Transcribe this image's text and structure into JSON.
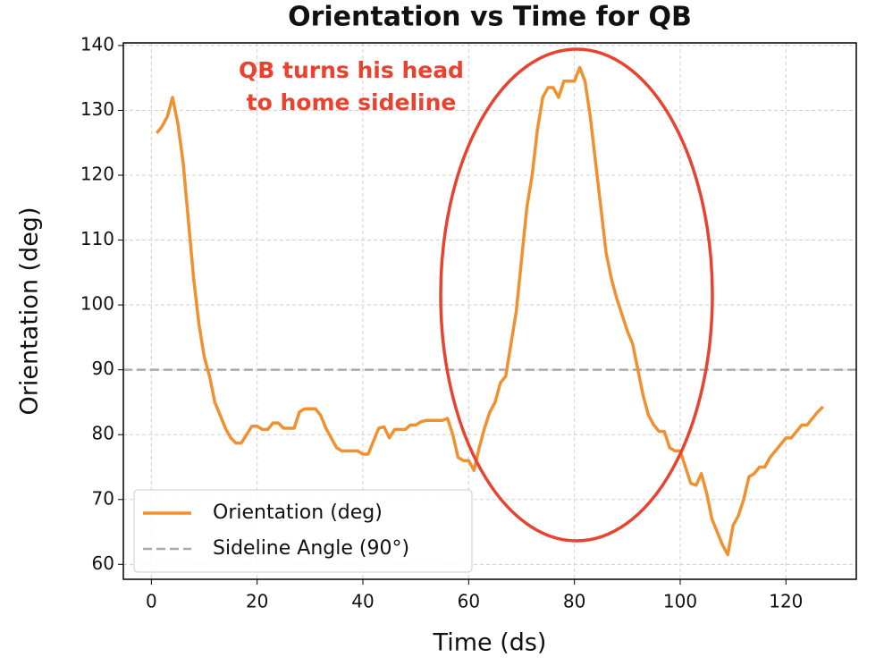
{
  "chart_data": {
    "type": "line",
    "title": "Orientation vs Time for QB",
    "x_label": "Time (ds)",
    "y_label": "Orientation (deg)",
    "x": [
      1,
      2,
      3,
      4,
      5,
      6,
      7,
      8,
      9,
      10,
      11,
      12,
      13,
      14,
      15,
      16,
      17,
      18,
      19,
      20,
      21,
      22,
      23,
      24,
      25,
      26,
      27,
      28,
      29,
      30,
      31,
      32,
      33,
      34,
      35,
      36,
      37,
      38,
      39,
      40,
      41,
      42,
      43,
      44,
      45,
      46,
      47,
      48,
      49,
      50,
      51,
      52,
      53,
      54,
      55,
      56,
      57,
      58,
      59,
      60,
      61,
      62,
      63,
      64,
      65,
      66,
      67,
      68,
      69,
      70,
      71,
      72,
      73,
      74,
      75,
      76,
      77,
      78,
      79,
      80,
      81,
      82,
      83,
      84,
      85,
      86,
      87,
      88,
      89,
      90,
      91,
      92,
      93,
      94,
      95,
      96,
      97,
      98,
      99,
      100,
      101,
      102,
      103,
      104,
      105,
      106,
      107,
      108,
      109,
      110,
      111,
      112,
      113,
      114,
      115,
      116,
      117,
      118,
      119,
      120,
      121,
      122,
      123,
      124,
      125,
      126,
      127
    ],
    "series": [
      {
        "name": "Orientation (deg)",
        "color": "#f0912f",
        "values": [
          126.5,
          127.5,
          129,
          132,
          128,
          122,
          113,
          104,
          97,
          92,
          89,
          85,
          83,
          81,
          79.5,
          78.7,
          78.7,
          80,
          81.3,
          81.3,
          80.8,
          80.8,
          81.8,
          81.8,
          81,
          81,
          81,
          83.5,
          84,
          84,
          84,
          83,
          81,
          79.5,
          78,
          77.5,
          77.5,
          77.5,
          77.5,
          77,
          77,
          79,
          81,
          81.2,
          79.5,
          80.8,
          80.8,
          80.8,
          81.5,
          81.5,
          82,
          82.2,
          82.2,
          82.2,
          82.2,
          82.5,
          80,
          76.5,
          76,
          76,
          74.5,
          78,
          81,
          83.5,
          85,
          88,
          89,
          94,
          99,
          107,
          115,
          120,
          127,
          132,
          133.5,
          133.5,
          132,
          134.5,
          134.5,
          134.5,
          136.6,
          134.5,
          129,
          122,
          115,
          108,
          104,
          101,
          98.5,
          96,
          94,
          90,
          86,
          83,
          81.5,
          80.5,
          80.5,
          78,
          77.5,
          77.5,
          75,
          72.5,
          72.2,
          74,
          71,
          67,
          65,
          63,
          61.5,
          66,
          67.5,
          70,
          73.5,
          74,
          75,
          75,
          76.5,
          77.5,
          78.5,
          79.5,
          79.5,
          80.5,
          81.5,
          81.5,
          82.5,
          83.5,
          84.3
        ]
      }
    ],
    "hlines": [
      {
        "name": "Sideline Angle (90°)",
        "value": 90,
        "color": "#aaaaaa"
      }
    ],
    "annotation": {
      "lines": [
        "QB turns his head",
        "to home sideline"
      ],
      "color": "#e8432f"
    },
    "xlim": [
      -5.3,
      133.3
    ],
    "ylim": [
      57.7,
      140.4
    ],
    "xticks": [
      0,
      20,
      40,
      60,
      80,
      100,
      120
    ],
    "yticks": [
      60,
      70,
      80,
      90,
      100,
      110,
      120,
      130,
      140
    ],
    "grid": true,
    "legend": "lower left"
  }
}
